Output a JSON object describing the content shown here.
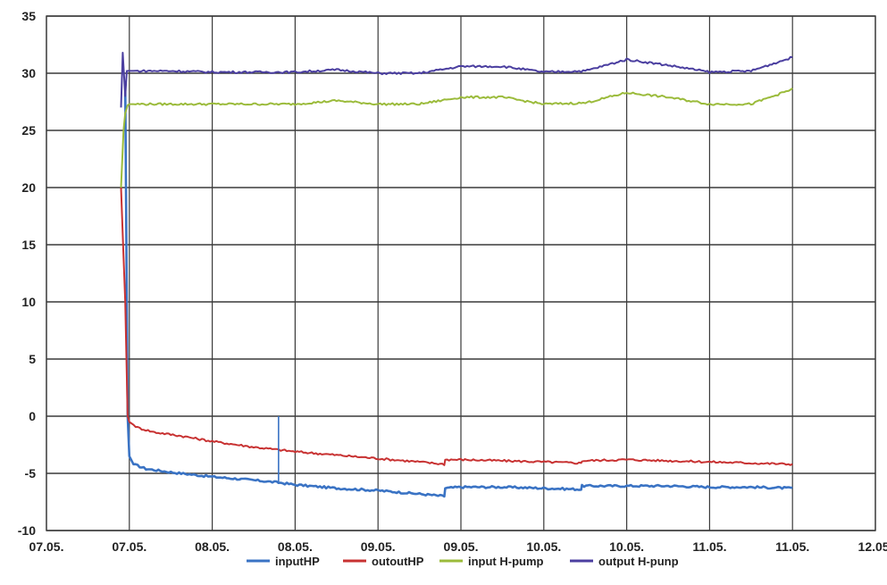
{
  "chart_data": {
    "type": "line",
    "title": "",
    "xlabel": "",
    "ylabel": "",
    "ylim": [
      -10,
      35
    ],
    "yticks": [
      -10,
      -5,
      0,
      5,
      10,
      15,
      20,
      25,
      30,
      35
    ],
    "xticks": [
      "07.05.",
      "07.05.",
      "08.05.",
      "08.05.",
      "09.05.",
      "09.05.",
      "10.05.",
      "10.05.",
      "11.05.",
      "11.05.",
      "12.05."
    ],
    "xlim": [
      0,
      10
    ],
    "grid": true,
    "legend": "bottom",
    "series": [
      {
        "name": "inputHP",
        "color": "#3a73c4",
        "x": [
          0.95,
          0.98,
          1.0,
          1.05,
          1.2,
          1.5,
          2.0,
          2.5,
          2.8,
          3.0,
          3.5,
          4.0,
          4.5,
          4.8,
          4.81,
          5.0,
          5.5,
          6.0,
          6.45,
          6.46,
          7.0,
          7.5,
          8.0,
          8.5,
          9.0
        ],
        "y": [
          29.0,
          0.0,
          -3.5,
          -4.2,
          -4.6,
          -4.9,
          -5.3,
          -5.6,
          -5.8,
          -6.0,
          -6.3,
          -6.5,
          -6.8,
          -7.0,
          -6.3,
          -6.2,
          -6.2,
          -6.3,
          -6.4,
          -6.1,
          -6.1,
          -6.1,
          -6.2,
          -6.2,
          -6.3
        ]
      },
      {
        "name": "outoutHP",
        "color": "#c83232",
        "x": [
          0.9,
          0.95,
          0.98,
          1.0,
          1.1,
          1.3,
          1.6,
          2.0,
          2.5,
          3.0,
          3.5,
          4.0,
          4.5,
          4.8,
          4.81,
          5.0,
          5.5,
          6.0,
          6.45,
          6.46,
          7.0,
          7.5,
          8.0,
          8.5,
          9.0
        ],
        "y": [
          20.0,
          10.0,
          0.0,
          -0.5,
          -1.0,
          -1.4,
          -1.7,
          -2.2,
          -2.7,
          -3.1,
          -3.4,
          -3.7,
          -4.0,
          -4.2,
          -3.8,
          -3.8,
          -3.9,
          -4.0,
          -4.1,
          -3.9,
          -3.8,
          -3.9,
          -4.0,
          -4.1,
          -4.2
        ]
      },
      {
        "name": "input H-pump",
        "color": "#9bbb3b",
        "x": [
          0.9,
          0.93,
          0.95,
          0.98,
          1.0,
          1.5,
          2.0,
          2.5,
          3.0,
          3.5,
          4.0,
          4.5,
          5.0,
          5.5,
          6.0,
          6.5,
          7.0,
          7.5,
          8.0,
          8.5,
          9.0
        ],
        "y": [
          20.0,
          25.0,
          26.5,
          27.2,
          27.3,
          27.3,
          27.3,
          27.3,
          27.3,
          27.6,
          27.3,
          27.3,
          27.9,
          27.9,
          27.3,
          27.4,
          28.3,
          27.9,
          27.3,
          27.3,
          28.6
        ]
      },
      {
        "name": "output H-punp",
        "color": "#4b3fa0",
        "x": [
          0.9,
          0.92,
          0.95,
          0.97,
          1.0,
          1.5,
          2.0,
          2.5,
          3.0,
          3.5,
          4.0,
          4.5,
          5.0,
          5.5,
          6.0,
          6.5,
          7.0,
          7.5,
          8.0,
          8.5,
          9.0
        ],
        "y": [
          27.0,
          31.8,
          28.0,
          30.2,
          30.2,
          30.2,
          30.1,
          30.1,
          30.1,
          30.3,
          30.0,
          30.0,
          30.6,
          30.6,
          30.1,
          30.2,
          31.2,
          30.7,
          30.1,
          30.2,
          31.4
        ]
      }
    ]
  }
}
